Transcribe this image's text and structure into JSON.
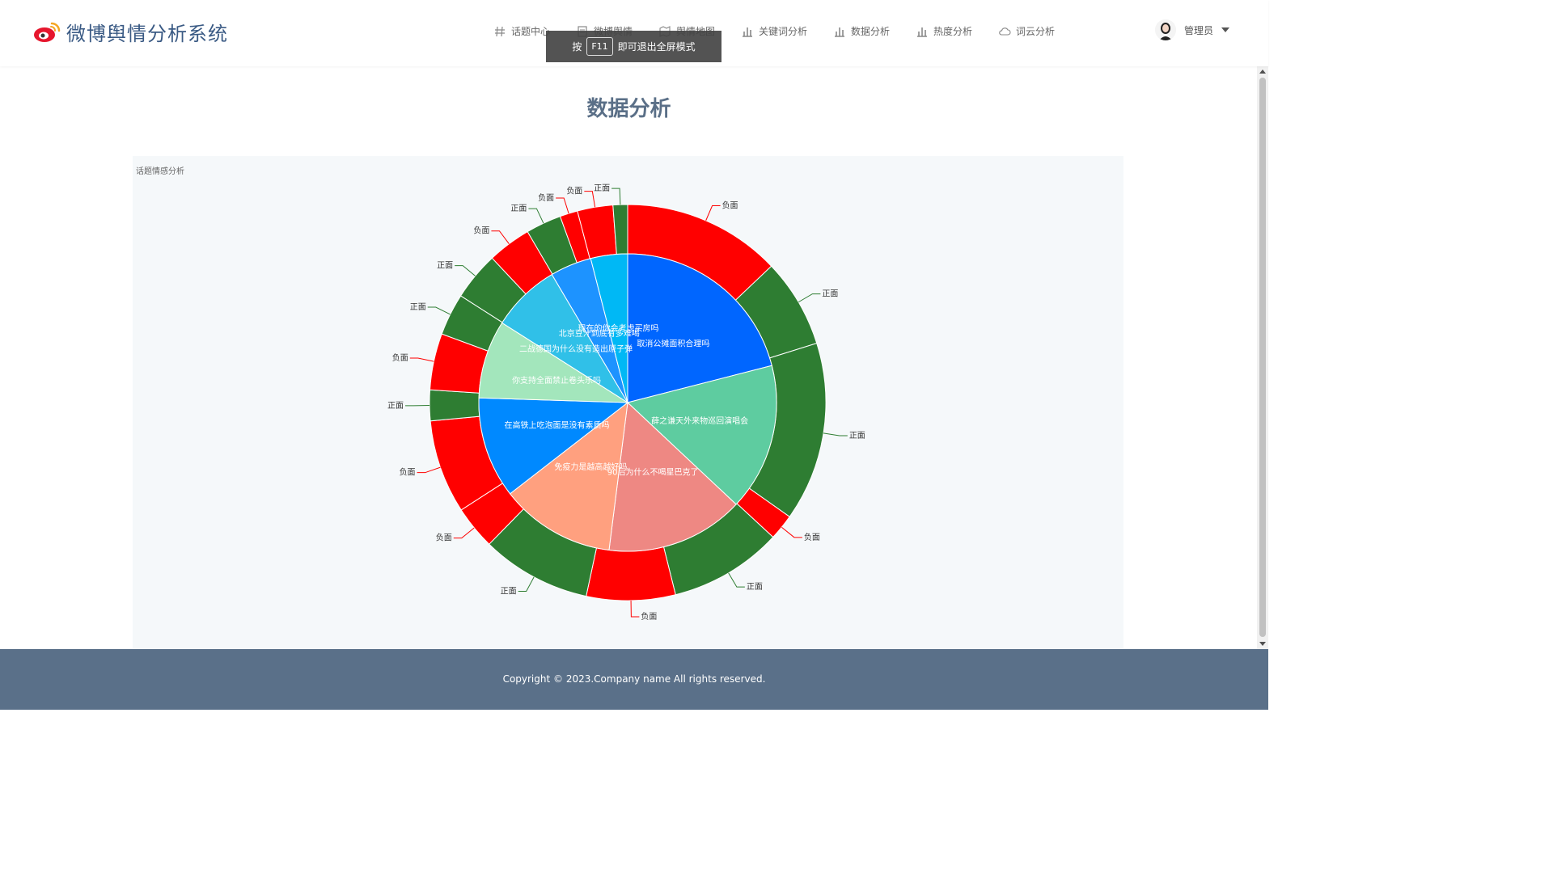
{
  "app": {
    "title": "微博舆情分析系统"
  },
  "nav": [
    {
      "label": "话题中心",
      "icon": "hash-icon",
      "name": "nav-topic-center"
    },
    {
      "label": "微博舆情",
      "icon": "document-icon",
      "name": "nav-weibo-sentiment"
    },
    {
      "label": "舆情地图",
      "icon": "map-icon",
      "name": "nav-sentiment-map"
    },
    {
      "label": "关键词分析",
      "icon": "bar-chart-icon",
      "name": "nav-keyword-analysis"
    },
    {
      "label": "数据分析",
      "icon": "bar-chart-icon",
      "name": "nav-data-analysis"
    },
    {
      "label": "热度分析",
      "icon": "bar-chart-icon",
      "name": "nav-heat-analysis"
    },
    {
      "label": "词云分析",
      "icon": "cloud-icon",
      "name": "nav-wordcloud-analysis"
    }
  ],
  "user": {
    "name": "管理员"
  },
  "toast": {
    "prefix": "按",
    "key": "F11",
    "suffix": "即可退出全屏模式"
  },
  "page": {
    "title": "数据分析"
  },
  "footer": {
    "text": "Copyright © 2023.Company name All rights reserved."
  },
  "chart_data": {
    "type": "pie",
    "title": "话题情感分析",
    "topics": [
      {
        "name": "取消公摊面积合理吗",
        "value": 21.0,
        "color": "#0066ff"
      },
      {
        "name": "薛之谦天外来物巡回演唱会",
        "value": 16.0,
        "color": "#5ecca0"
      },
      {
        "name": "90后为什么不喝星巴克了",
        "value": 15.0,
        "color": "#ee8883"
      },
      {
        "name": "免疫力是越高越好吗",
        "value": 12.5,
        "color": "#ffa07f"
      },
      {
        "name": "在高铁上吃泡面是没有素质吗",
        "value": 11.0,
        "color": "#0089ff"
      },
      {
        "name": "你支持全面禁止卷头乐吗",
        "value": 8.5,
        "color": "#a3e6bc"
      },
      {
        "name": "二战德国为什么没有造出原子弹",
        "value": 7.5,
        "color": "#30c0e8"
      },
      {
        "name": "北京豆汁到底有多难喝",
        "value": 4.5,
        "color": "#1d93ff"
      },
      {
        "name": "现在的你会考虑买房吗",
        "value": 4.0,
        "color": "#00b8f5"
      }
    ],
    "sentiment": [
      {
        "label": "负面",
        "value": 9.8
      },
      {
        "label": "正面",
        "value": 5.5
      },
      {
        "label": "正面",
        "value": 11.1
      },
      {
        "label": "负面",
        "value": 1.6
      },
      {
        "label": "正面",
        "value": 7.0
      },
      {
        "label": "负面",
        "value": 5.5
      },
      {
        "label": "正面",
        "value": 6.8
      },
      {
        "label": "负面",
        "value": 2.7
      },
      {
        "label": "负面",
        "value": 5.8
      },
      {
        "label": "正面",
        "value": 1.9
      },
      {
        "label": "负面",
        "value": 3.5
      },
      {
        "label": "正面",
        "value": 2.6
      },
      {
        "label": "正面",
        "value": 3.0
      },
      {
        "label": "负面",
        "value": 2.7
      },
      {
        "label": "正面",
        "value": 2.2
      },
      {
        "label": "负面",
        "value": 1.1
      },
      {
        "label": "负面",
        "value": 2.2
      },
      {
        "label": "正面",
        "value": 0.9
      }
    ],
    "colors": {
      "正面": "#2e7d32",
      "负面": "#ff0000"
    }
  }
}
